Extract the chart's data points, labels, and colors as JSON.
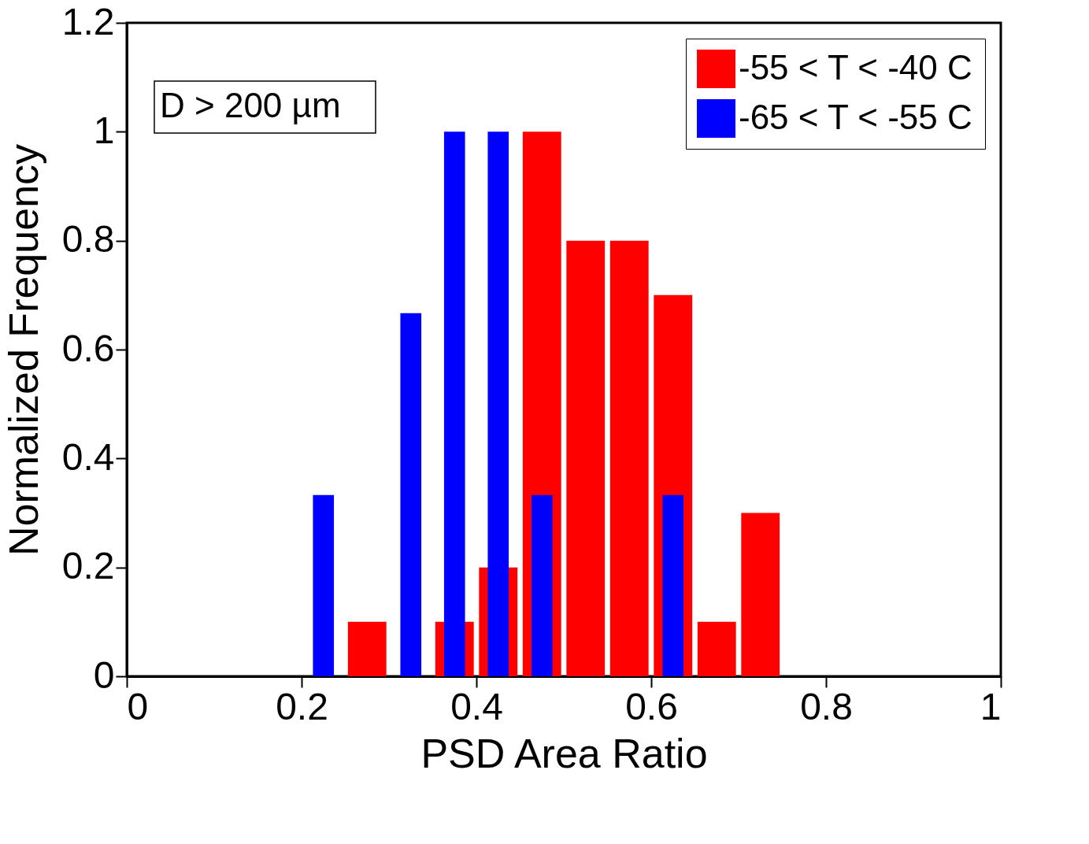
{
  "chart_data": {
    "type": "histogram",
    "xlabel": "PSD Area Ratio",
    "ylabel": "Normalized Frequency",
    "bins": [
      0.2,
      0.25,
      0.3,
      0.35,
      0.4,
      0.45,
      0.5,
      0.55,
      0.6,
      0.65,
      0.7,
      0.75
    ],
    "series": [
      {
        "name": "-55 < T < -40 C",
        "color": "#ff0000",
        "values": [
          0,
          0.1,
          0,
          0.1,
          0.2,
          1.0,
          0.8,
          0.8,
          0.7,
          0.1,
          0.3
        ]
      },
      {
        "name": "-65 < T < -55 C",
        "color": "#0000ff",
        "values": [
          0.333,
          0,
          0.667,
          1,
          1,
          0.333,
          0,
          0,
          0.333,
          0,
          0
        ]
      }
    ],
    "xlim": [
      0,
      1
    ],
    "xticks": [
      0,
      0.2,
      0.4,
      0.6,
      0.8,
      1
    ],
    "ylim": [
      0,
      1.2
    ],
    "yticks": [
      0,
      0.2,
      0.4,
      0.6,
      0.8,
      1,
      1.2
    ],
    "grid": false,
    "legend": "top right",
    "annotations": [
      "D > 200 µm"
    ]
  }
}
